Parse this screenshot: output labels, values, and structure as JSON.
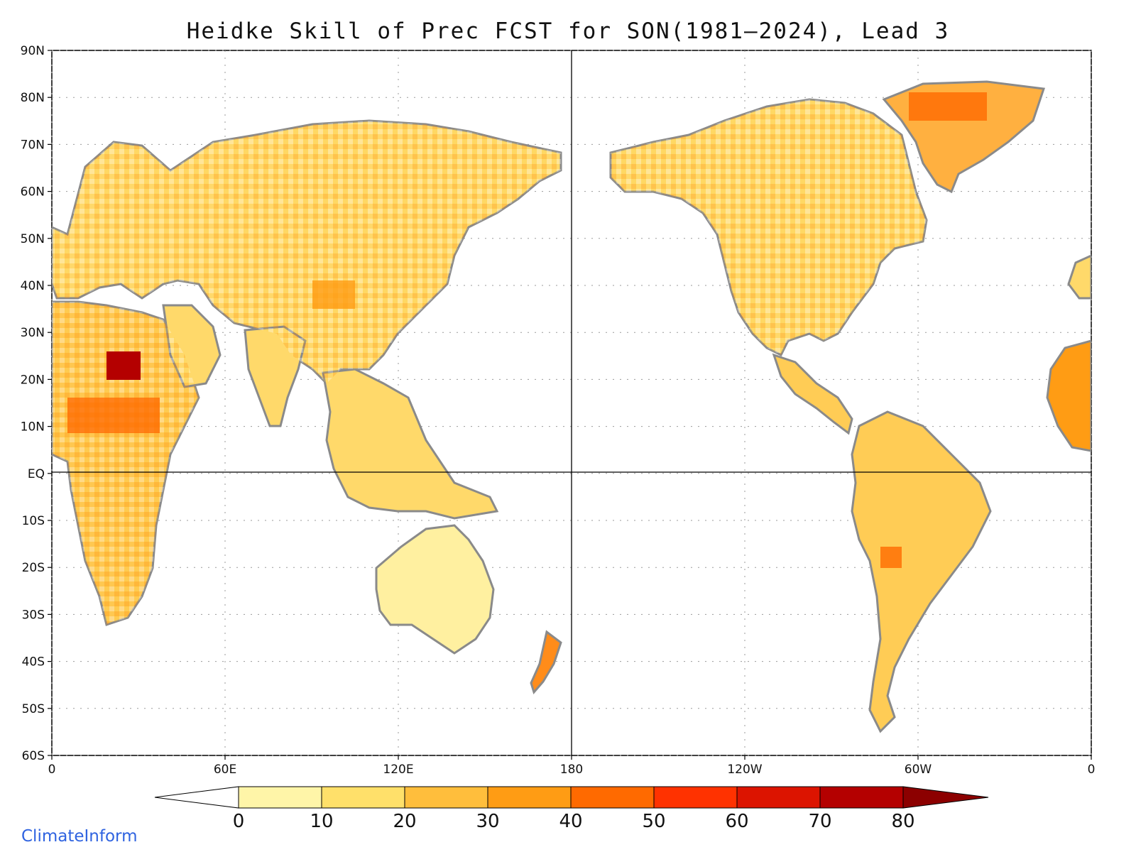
{
  "title": "Heidke Skill of Prec FCST for SON(1981‒2024), Lead 3",
  "logo_text": "ClimateInform",
  "map": {
    "projection": "equirectangular",
    "lon_range": [
      0,
      360
    ],
    "lat_range": [
      -60,
      90
    ],
    "lat_ticks": [
      {
        "value": 90,
        "label": "90N"
      },
      {
        "value": 80,
        "label": "80N"
      },
      {
        "value": 70,
        "label": "70N"
      },
      {
        "value": 60,
        "label": "60N"
      },
      {
        "value": 50,
        "label": "50N"
      },
      {
        "value": 40,
        "label": "40N"
      },
      {
        "value": 30,
        "label": "30N"
      },
      {
        "value": 20,
        "label": "20N"
      },
      {
        "value": 10,
        "label": "10N"
      },
      {
        "value": 0,
        "label": "EQ"
      },
      {
        "value": -10,
        "label": "10S"
      },
      {
        "value": -20,
        "label": "20S"
      },
      {
        "value": -30,
        "label": "30S"
      },
      {
        "value": -40,
        "label": "40S"
      },
      {
        "value": -50,
        "label": "50S"
      },
      {
        "value": -60,
        "label": "60S"
      }
    ],
    "lon_ticks": [
      {
        "value": 0,
        "label": "0"
      },
      {
        "value": 60,
        "label": "60E"
      },
      {
        "value": 120,
        "label": "120E"
      },
      {
        "value": 180,
        "label": "180"
      },
      {
        "value": 240,
        "label": "120W"
      },
      {
        "value": 300,
        "label": "60W"
      },
      {
        "value": 360,
        "label": "0"
      }
    ],
    "gridlines": "dotted",
    "reference_lines": [
      "equator",
      "date-line"
    ],
    "land_color": "#9a9a9a",
    "ocean_color": "#ffffff"
  },
  "colorbar": {
    "orientation": "horizontal",
    "below_color": "#ffffff",
    "bins": [
      {
        "from": 0,
        "to": 10,
        "color": "#fff5a8"
      },
      {
        "from": 10,
        "to": 20,
        "color": "#ffe06a"
      },
      {
        "from": 20,
        "to": 30,
        "color": "#ffbe3c"
      },
      {
        "from": 30,
        "to": 40,
        "color": "#ff9c14"
      },
      {
        "from": 40,
        "to": 50,
        "color": "#ff6a00"
      },
      {
        "from": 50,
        "to": 60,
        "color": "#ff3200"
      },
      {
        "from": 60,
        "to": 70,
        "color": "#dc1400"
      },
      {
        "from": 70,
        "to": 80,
        "color": "#b40000"
      }
    ],
    "above_color": "#8c0000",
    "labels": [
      "0",
      "10",
      "20",
      "30",
      "40",
      "50",
      "60",
      "70",
      "80"
    ]
  },
  "regions": [
    {
      "name": "europe-asia"
    },
    {
      "name": "africa"
    },
    {
      "name": "arabia"
    },
    {
      "name": "india"
    },
    {
      "name": "southeast-asia"
    },
    {
      "name": "australia"
    },
    {
      "name": "new-zealand"
    },
    {
      "name": "greenland"
    },
    {
      "name": "north-america"
    },
    {
      "name": "central-america"
    },
    {
      "name": "south-america"
    },
    {
      "name": "west-africa-wrap"
    },
    {
      "name": "iberia-wrap"
    }
  ]
}
